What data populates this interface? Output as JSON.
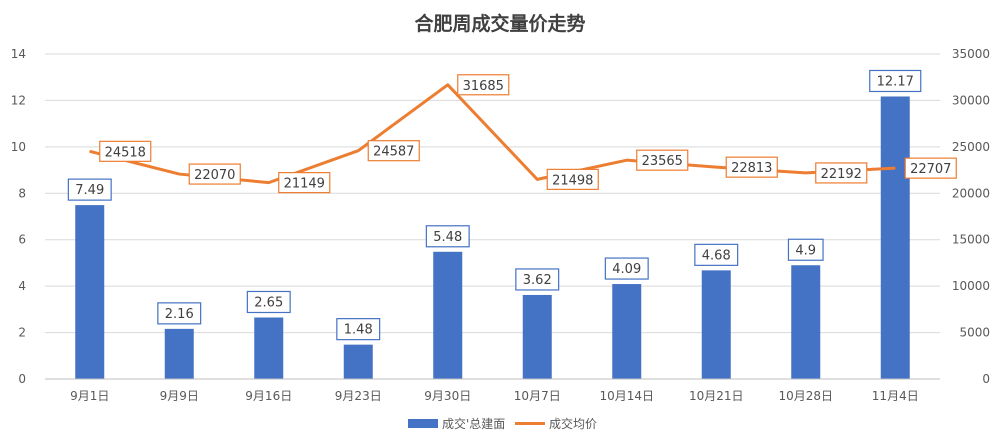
{
  "chart_data": {
    "type": "bar",
    "title": "合肥周成交量价走势",
    "categories": [
      "9月1日",
      "9月9日",
      "9月16日",
      "9月23日",
      "9月30日",
      "10月7日",
      "10月14日",
      "10月21日",
      "10月28日",
      "11月4日"
    ],
    "series": [
      {
        "name": "成交'总建面",
        "type": "bar",
        "axis": "left",
        "values": [
          7.49,
          2.16,
          2.65,
          1.48,
          5.48,
          3.62,
          4.09,
          4.68,
          4.9,
          12.17
        ],
        "labels": [
          "7.49",
          "2.16",
          "2.65",
          "1.48",
          "5.48",
          "3.62",
          "4.09",
          "4.68",
          "4.9",
          "12.17"
        ]
      },
      {
        "name": "成交均价",
        "type": "line",
        "axis": "right",
        "values": [
          24518,
          22070,
          21149,
          24587,
          31685,
          21498,
          23565,
          22813,
          22192,
          22707
        ],
        "labels": [
          "24518",
          "22070",
          "21149",
          "24587",
          "31685",
          "21498",
          "23565",
          "22813",
          "22192",
          "22707"
        ]
      }
    ],
    "yleft": {
      "min": 0,
      "max": 14,
      "ticks": [
        "0",
        "2",
        "4",
        "6",
        "8",
        "10",
        "12",
        "14"
      ]
    },
    "yright": {
      "min": 0,
      "max": 35000,
      "ticks": [
        "0",
        "5000",
        "10000",
        "15000",
        "20000",
        "25000",
        "30000",
        "35000"
      ]
    },
    "grid": true,
    "legend_position": "bottom"
  },
  "colors": {
    "bar": "#4472C4",
    "line": "#ED7D31",
    "grid": "#D9D9D9",
    "axis_text": "#595959",
    "title": "#404040"
  }
}
